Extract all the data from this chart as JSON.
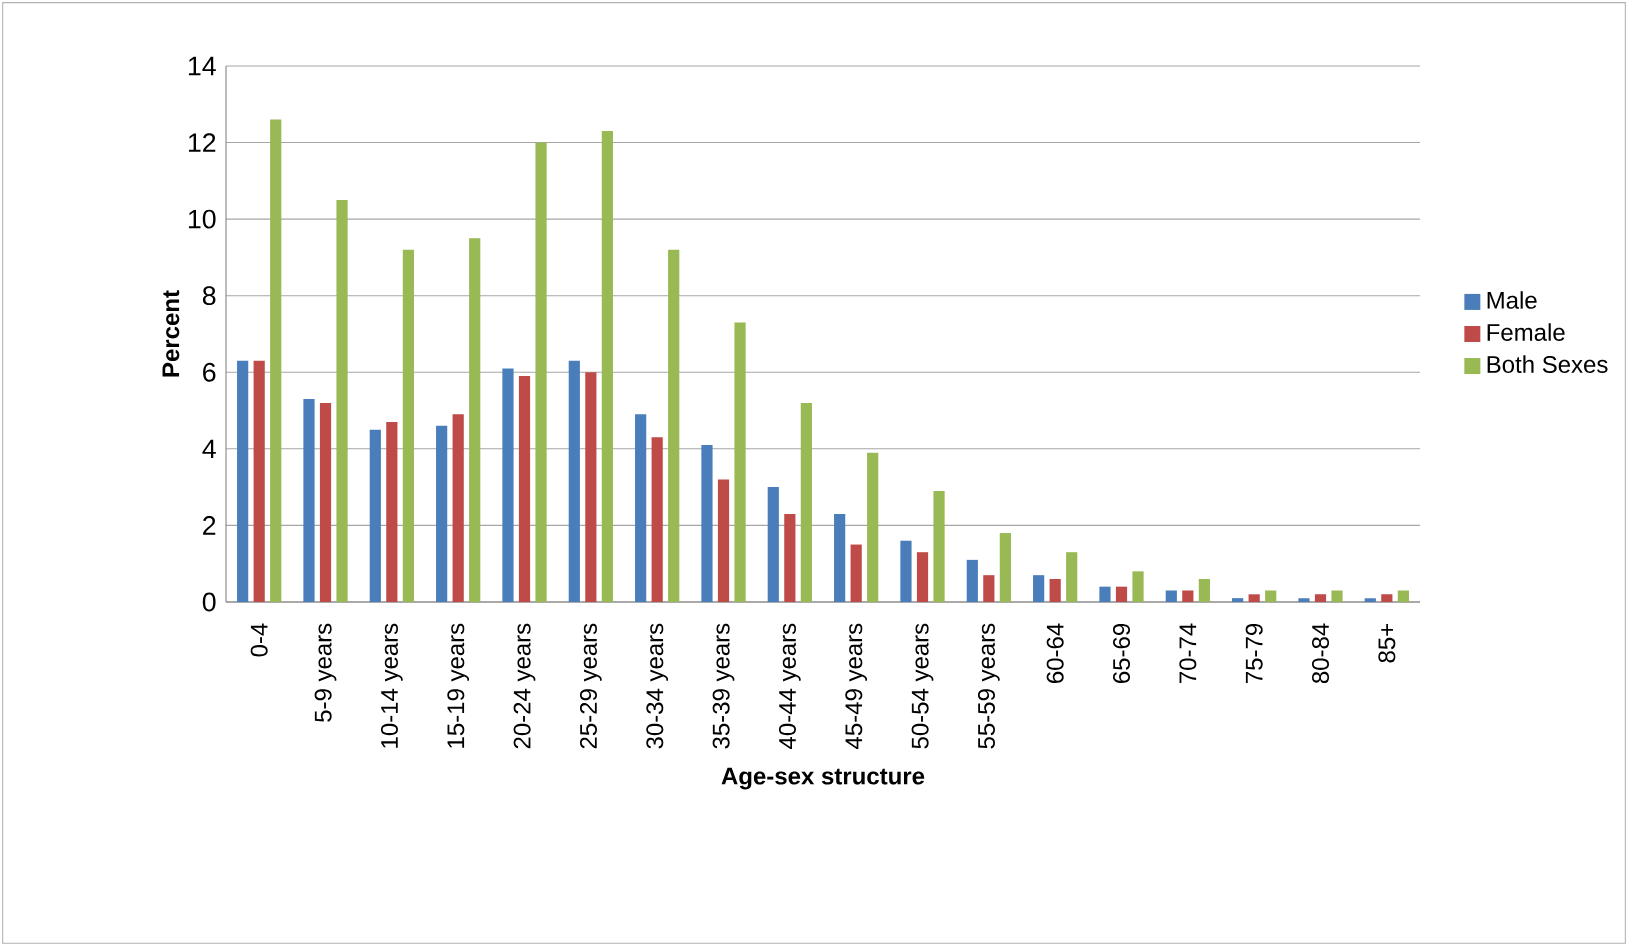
{
  "chart_data": {
    "type": "bar",
    "xlabel": "Age-sex structure",
    "ylabel": "Percent",
    "categories": [
      "0-4",
      "5-9 years",
      "10-14 years",
      "15-19 years",
      "20-24 years",
      "25-29 years",
      "30-34 years",
      "35-39 years",
      "40-44 years",
      "45-49 years",
      "50-54 years",
      "55-59 years",
      "60-64",
      "65-69",
      "70-74",
      "75-79",
      "80-84",
      "85+"
    ],
    "series": [
      {
        "name": "Male",
        "color": "#4a7ebb",
        "values": [
          6.3,
          5.3,
          4.5,
          4.6,
          6.1,
          6.3,
          4.9,
          4.1,
          3.0,
          2.3,
          1.6,
          1.1,
          0.7,
          0.4,
          0.3,
          0.1,
          0.1,
          0.1
        ]
      },
      {
        "name": "Female",
        "color": "#be4b48",
        "values": [
          6.3,
          5.2,
          4.7,
          4.9,
          5.9,
          6.0,
          4.3,
          3.2,
          2.3,
          1.5,
          1.3,
          0.7,
          0.6,
          0.4,
          0.3,
          0.2,
          0.2,
          0.2
        ]
      },
      {
        "name": "Both Sexes",
        "color": "#98b954",
        "values": [
          12.6,
          10.5,
          9.2,
          9.5,
          12.0,
          12.3,
          9.2,
          7.3,
          5.2,
          3.9,
          2.9,
          1.8,
          1.3,
          0.8,
          0.6,
          0.3,
          0.3,
          0.3
        ]
      }
    ],
    "ylim": [
      0,
      14
    ],
    "yticks": [
      0,
      2,
      4,
      6,
      8,
      10,
      12,
      14
    ],
    "grid": "y",
    "legend": "right"
  }
}
